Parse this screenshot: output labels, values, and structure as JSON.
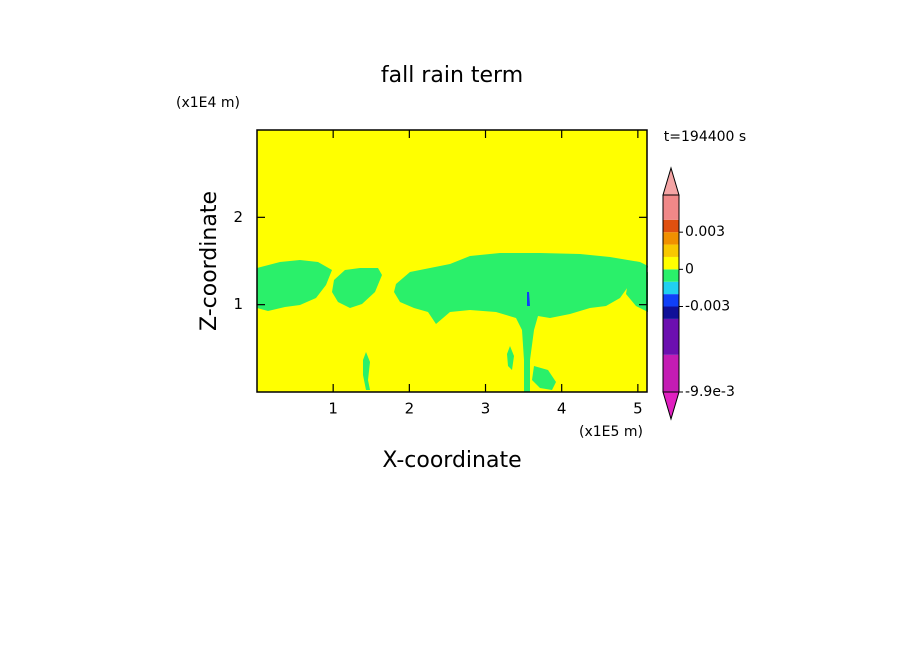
{
  "chart_data": {
    "type": "contour",
    "title": "fall rain term",
    "x_label": "X-coordinate",
    "y_label": "Z-coordinate",
    "x_unit": "(x1E5 m)",
    "y_unit": "(x1E4 m)",
    "annotation": "t=194400 s",
    "xlim": [
      0,
      5.12
    ],
    "ylim": [
      0,
      3
    ],
    "xticks": [
      1,
      2,
      3,
      4,
      5
    ],
    "yticks": [
      1,
      2
    ],
    "colorbar": {
      "levels": [
        -0.0099,
        -0.0069,
        -0.004,
        -0.003,
        -0.002,
        -0.001,
        0,
        0.001,
        0.002,
        0.003,
        0.004,
        0.006
      ],
      "colors": [
        "#e020c0",
        "#c41cb4",
        "#6c10b0",
        "#101098",
        "#1040f8",
        "#20d0f0",
        "#2af06a",
        "#ffff00",
        "#f8c800",
        "#f09000",
        "#e05010",
        "#f08888",
        "#f4a4a4"
      ],
      "ticks": [
        {
          "value": -0.0099,
          "label": "-9.9e-3"
        },
        {
          "value": -0.003,
          "label": "-0.003"
        },
        0,
        0.003
      ]
    }
  }
}
